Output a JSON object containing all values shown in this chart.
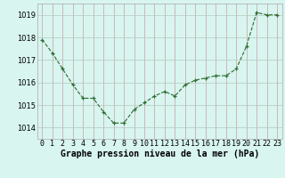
{
  "hours": [
    0,
    1,
    2,
    3,
    4,
    5,
    6,
    7,
    8,
    9,
    10,
    11,
    12,
    13,
    14,
    15,
    16,
    17,
    18,
    19,
    20,
    21,
    22,
    23
  ],
  "pressure": [
    1017.9,
    1017.3,
    1016.6,
    1015.9,
    1015.3,
    1015.3,
    1014.7,
    1014.2,
    1014.2,
    1014.8,
    1015.1,
    1015.4,
    1015.6,
    1015.4,
    1015.9,
    1016.1,
    1016.2,
    1016.3,
    1016.3,
    1016.6,
    1017.6,
    1019.1,
    1019.0,
    1019.0
  ],
  "line_color": "#2d6a2d",
  "marker": "+",
  "bg_color": "#d8f5f0",
  "grid_color_v": "#c8a0a0",
  "grid_color_h": "#b8c8c0",
  "xlabel": "Graphe pression niveau de la mer (hPa)",
  "ylim": [
    1013.5,
    1019.5
  ],
  "yticks": [
    1014,
    1015,
    1016,
    1017,
    1018,
    1019
  ],
  "tick_fontsize": 6,
  "xlabel_fontsize": 7
}
